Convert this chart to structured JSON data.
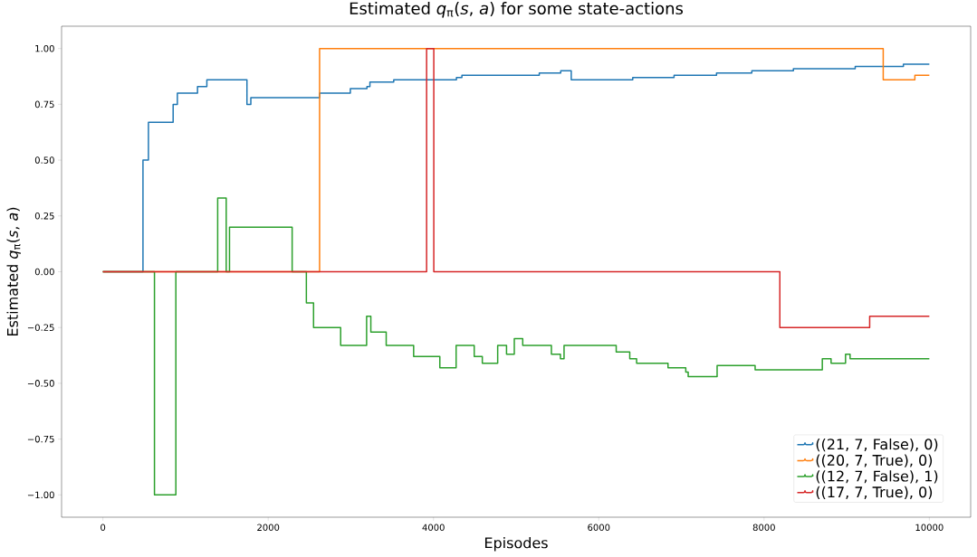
{
  "chart_data": {
    "type": "step",
    "title": "Estimated *q*$_{π}$(*s*, *a*) for some state-actions",
    "xlabel": "Episodes",
    "ylabel": "Estimated *q*$_{π}$(*s*, *a*)",
    "xlim": [
      -500,
      10500
    ],
    "ylim": [
      -1.1,
      1.1
    ],
    "xticks": [
      0,
      2000,
      4000,
      6000,
      8000,
      10000
    ],
    "yticks": [
      {
        "value": -1,
        "label": "−1.00"
      },
      {
        "value": -0.75,
        "label": "−0.75"
      },
      {
        "value": -0.5,
        "label": "−0.50"
      },
      {
        "value": -0.25,
        "label": "−0.25"
      },
      {
        "value": 0,
        "label": "0.00"
      },
      {
        "value": 0.25,
        "label": "0.25"
      },
      {
        "value": 0.5,
        "label": "0.50"
      },
      {
        "value": 0.75,
        "label": "0.75"
      },
      {
        "value": 1,
        "label": "1.00"
      }
    ],
    "legend": "bottom right",
    "grid": false,
    "series": [
      {
        "name": "((21, 7, False), 0)",
        "color": "#1f77b4",
        "x": [
          0,
          485,
          551,
          850,
          901,
          1145,
          1258,
          1743,
          1790,
          2622,
          2994,
          3195,
          3231,
          3519,
          4278,
          4344,
          4909,
          5280,
          5540,
          5667,
          6014,
          6411,
          6911,
          7360,
          7425,
          7852,
          7954,
          8253,
          8355,
          8701,
          8903,
          9103,
          9322,
          9551,
          9686,
          10000
        ],
        "values": [
          0,
          0.5,
          0.67,
          0.75,
          0.8,
          0.83,
          0.86,
          0.75,
          0.78,
          0.8,
          0.82,
          0.83,
          0.85,
          0.86,
          0.87,
          0.88,
          0.88,
          0.89,
          0.9,
          0.86,
          0.86,
          0.87,
          0.88,
          0.88,
          0.89,
          0.9,
          0.9,
          0.9,
          0.91,
          0.91,
          0.91,
          0.92,
          0.92,
          0.92,
          0.93,
          0.93
        ]
      },
      {
        "name": "((20, 7, True), 0)",
        "color": "#ff7f0e",
        "x": [
          0,
          2622,
          9442,
          9825,
          10000
        ],
        "values": [
          0,
          1,
          0.86,
          0.88,
          0.88
        ]
      },
      {
        "name": "((12, 7, False), 1)",
        "color": "#2ca02c",
        "x": [
          0,
          624,
          883,
          1389,
          1492,
          1532,
          2290,
          2462,
          2549,
          2877,
          3191,
          3242,
          3428,
          3760,
          4077,
          4274,
          4493,
          4591,
          4777,
          4884,
          4978,
          5080,
          5427,
          5536,
          5580,
          6211,
          6375,
          6458,
          6838,
          7053,
          7082,
          7432,
          7892,
          8705,
          8811,
          8986,
          9041,
          10000
        ],
        "values": [
          0,
          -1,
          0,
          0.33,
          0,
          0.2,
          0,
          -0.14,
          -0.25,
          -0.33,
          -0.2,
          -0.27,
          -0.33,
          -0.38,
          -0.43,
          -0.33,
          -0.38,
          -0.41,
          -0.33,
          -0.37,
          -0.3,
          -0.33,
          -0.37,
          -0.39,
          -0.33,
          -0.36,
          -0.39,
          -0.41,
          -0.43,
          -0.45,
          -0.47,
          -0.42,
          -0.44,
          -0.39,
          -0.41,
          -0.37,
          -0.39,
          -0.39
        ]
      },
      {
        "name": "((17, 7, True), 0)",
        "color": "#d62728",
        "x": [
          0,
          3917,
          4004,
          8191,
          9278,
          10000
        ],
        "values": [
          0,
          1,
          0,
          -0.25,
          -0.2,
          -0.2
        ]
      }
    ]
  }
}
